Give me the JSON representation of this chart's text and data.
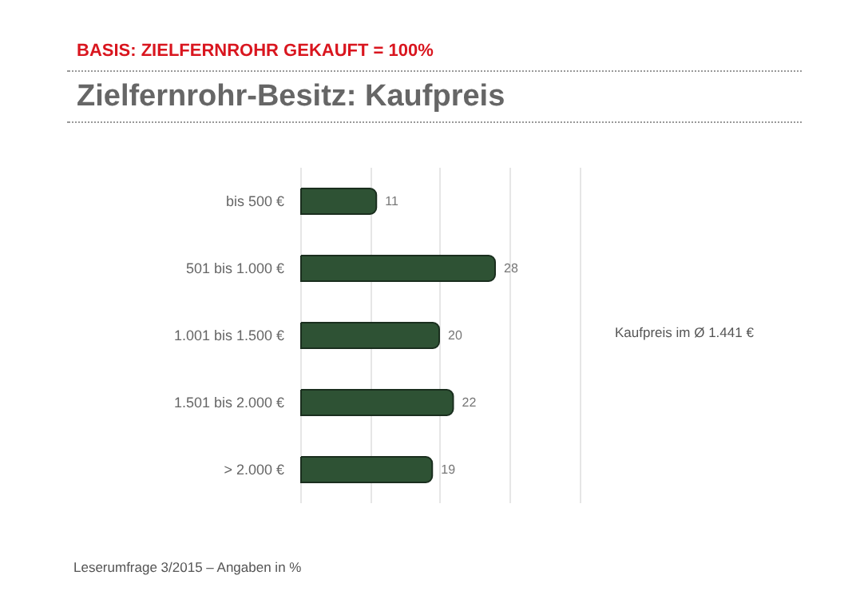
{
  "chart_data": {
    "type": "bar",
    "orientation": "horizontal",
    "subtitle": "BASIS: ZIELFERNROHR GEKAUFT = 100%",
    "title": "Zielfernrohr-Besitz: Kaufpreis",
    "categories": [
      "bis 500 €",
      "501 bis 1.000 €",
      "1.001 bis 1.500 €",
      "1.501 bis 2.000 €",
      "> 2.000 €"
    ],
    "values": [
      11,
      28,
      20,
      22,
      19
    ],
    "color": "#2e5234",
    "data_labels": true,
    "xlim": [
      0,
      40
    ],
    "xticks": [
      {
        "value": 0,
        "label": null
      },
      {
        "value": 10,
        "label": null
      },
      {
        "value": 20,
        "label": null
      },
      {
        "value": 30,
        "label": null
      },
      {
        "value": 40,
        "label": null
      }
    ],
    "grid": "x",
    "tick_labels": "y",
    "annotations": [
      "Kaufpreis im Ø 1.441 €",
      "Leserumfrage 3/2015 – Angaben in %"
    ]
  }
}
